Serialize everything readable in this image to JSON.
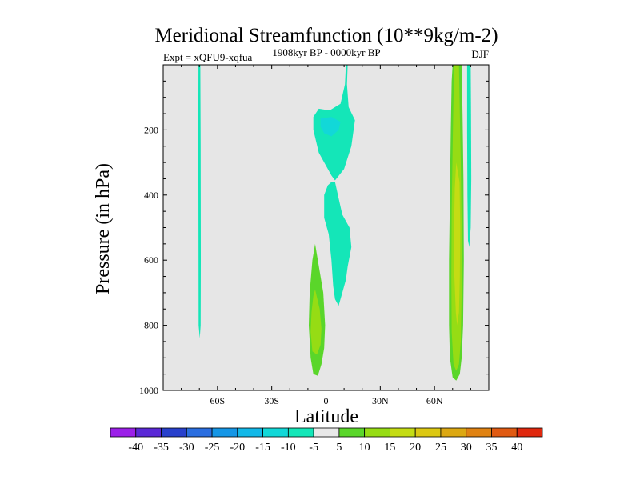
{
  "chart_data": {
    "type": "contour",
    "title": "Meridional Streamfunction (10**9kg/m-2)",
    "experiment": "Expt = xQFU9-xqfua",
    "period": "1908kyr BP - 0000kyr BP",
    "season": "DJF",
    "xlabel": "Latitude",
    "ylabel": "Pressure (in hPa)",
    "xlim": [
      -90,
      90
    ],
    "ylim": [
      1000,
      0
    ],
    "x_ticks": [
      {
        "value": -60,
        "label": "60S"
      },
      {
        "value": -30,
        "label": "30S"
      },
      {
        "value": 0,
        "label": "0"
      },
      {
        "value": 30,
        "label": "30N"
      },
      {
        "value": 60,
        "label": "60N"
      }
    ],
    "y_ticks": [
      {
        "value": 200,
        "label": "200"
      },
      {
        "value": 400,
        "label": "400"
      },
      {
        "value": 600,
        "label": "600"
      },
      {
        "value": 800,
        "label": "800"
      },
      {
        "value": 1000,
        "label": "1000"
      }
    ],
    "background_color": "#e6e6e6",
    "colorbar": {
      "labels": [
        "-40",
        "-35",
        "-30",
        "-25",
        "-20",
        "-15",
        "-10",
        "-5",
        "5",
        "10",
        "15",
        "20",
        "25",
        "30",
        "35",
        "40"
      ],
      "colors": [
        "#9b1fe8",
        "#5a28d6",
        "#2840cc",
        "#2a6ee0",
        "#1596e6",
        "#12b8e8",
        "#12d8d8",
        "#14e6b8",
        "#e8e8e8",
        "#5ad62a",
        "#96dc14",
        "#c4dc14",
        "#dcc812",
        "#dca812",
        "#e08212",
        "#e05a12",
        "#e0280e"
      ]
    },
    "contours": [
      {
        "name": "sh-polar-negative-band",
        "fill": "#14e6b8",
        "points": [
          [
            -70.5,
            0
          ],
          [
            -69.5,
            0
          ],
          [
            -69.3,
            250
          ],
          [
            -69.2,
            600
          ],
          [
            -69.3,
            800
          ],
          [
            -69.8,
            840
          ],
          [
            -70.4,
            800
          ],
          [
            -70.5,
            500
          ],
          [
            -70.6,
            200
          ]
        ]
      },
      {
        "name": "tropical-upper-negative-cell",
        "fill": "#14e6b8",
        "points": [
          [
            11,
            0
          ],
          [
            12,
            0
          ],
          [
            11.6,
            60
          ],
          [
            12.5,
            130
          ],
          [
            16,
            170
          ],
          [
            14,
            250
          ],
          [
            10,
            320
          ],
          [
            5,
            355
          ],
          [
            3,
            340
          ],
          [
            -4,
            270
          ],
          [
            -7,
            200
          ],
          [
            -7,
            160
          ],
          [
            -4,
            135
          ],
          [
            2,
            140
          ],
          [
            8,
            120
          ],
          [
            10.5,
            60
          ]
        ]
      },
      {
        "name": "tropical-upper-core",
        "fill": "#12d8d8",
        "points": [
          [
            -3,
            165
          ],
          [
            3,
            160
          ],
          [
            8,
            175
          ],
          [
            7,
            200
          ],
          [
            3,
            220
          ],
          [
            -1,
            210
          ],
          [
            -3,
            190
          ]
        ]
      },
      {
        "name": "tropical-mid-negative-cell",
        "fill": "#14e6b8",
        "points": [
          [
            3,
            360
          ],
          [
            5,
            360
          ],
          [
            7,
            410
          ],
          [
            9,
            460
          ],
          [
            13,
            500
          ],
          [
            14,
            560
          ],
          [
            12,
            620
          ],
          [
            11,
            660
          ],
          [
            9,
            700
          ],
          [
            7,
            740
          ],
          [
            5,
            720
          ],
          [
            4,
            680
          ],
          [
            3,
            600
          ],
          [
            1.5,
            520
          ],
          [
            -1,
            470
          ],
          [
            -1,
            400
          ],
          [
            1,
            370
          ]
        ]
      },
      {
        "name": "tropical-lower-positive-cell",
        "fill": "#5ad62a",
        "points": [
          [
            -6,
            550
          ],
          [
            -4.5,
            600
          ],
          [
            -1.5,
            700
          ],
          [
            -0.5,
            800
          ],
          [
            -1,
            870
          ],
          [
            -2.5,
            920
          ],
          [
            -4.5,
            955
          ],
          [
            -7,
            950
          ],
          [
            -8.5,
            900
          ],
          [
            -9.5,
            800
          ],
          [
            -9,
            700
          ],
          [
            -7.5,
            600
          ]
        ]
      },
      {
        "name": "tropical-lower-positive-core",
        "fill": "#96dc14",
        "points": [
          [
            -6,
            690
          ],
          [
            -3.5,
            750
          ],
          [
            -2.5,
            810
          ],
          [
            -3,
            860
          ],
          [
            -5,
            890
          ],
          [
            -7.5,
            880
          ],
          [
            -8.5,
            820
          ],
          [
            -8,
            760
          ],
          [
            -7,
            710
          ]
        ]
      },
      {
        "name": "nh-midlat-positive-band",
        "fill": "#5ad62a",
        "points": [
          [
            70,
            0
          ],
          [
            75,
            0
          ],
          [
            75.5,
            150
          ],
          [
            76,
            350
          ],
          [
            76.2,
            600
          ],
          [
            75.8,
            800
          ],
          [
            75,
            900
          ],
          [
            74,
            950
          ],
          [
            72,
            970
          ],
          [
            70,
            960
          ],
          [
            68.5,
            900
          ],
          [
            68,
            800
          ],
          [
            68,
            600
          ],
          [
            68.5,
            400
          ],
          [
            69,
            200
          ],
          [
            69.5,
            50
          ]
        ]
      },
      {
        "name": "nh-midlat-positive-core",
        "fill": "#96dc14",
        "points": [
          [
            71,
            0
          ],
          [
            73.5,
            0
          ],
          [
            74,
            150
          ],
          [
            74.5,
            300
          ],
          [
            75,
            500
          ],
          [
            75,
            700
          ],
          [
            74.5,
            850
          ],
          [
            73.5,
            920
          ],
          [
            72,
            940
          ],
          [
            70.5,
            920
          ],
          [
            69.5,
            820
          ],
          [
            69.3,
            650
          ],
          [
            69.5,
            450
          ],
          [
            70,
            250
          ],
          [
            70.5,
            100
          ]
        ]
      },
      {
        "name": "nh-midlat-inner-core",
        "fill": "#c4dc14",
        "points": [
          [
            72,
            300
          ],
          [
            73.8,
            360
          ],
          [
            74.2,
            500
          ],
          [
            74,
            650
          ],
          [
            73.5,
            760
          ],
          [
            72.5,
            800
          ],
          [
            71.8,
            760
          ],
          [
            71,
            650
          ],
          [
            70.8,
            500
          ],
          [
            71.2,
            380
          ]
        ]
      },
      {
        "name": "nh-polar-negative-band",
        "fill": "#14e6b8",
        "points": [
          [
            78,
            0
          ],
          [
            80,
            0
          ],
          [
            80.2,
            150
          ],
          [
            80.3,
            350
          ],
          [
            80,
            500
          ],
          [
            79.2,
            560
          ],
          [
            78.5,
            540
          ],
          [
            78.2,
            400
          ],
          [
            78,
            200
          ]
        ]
      }
    ]
  }
}
